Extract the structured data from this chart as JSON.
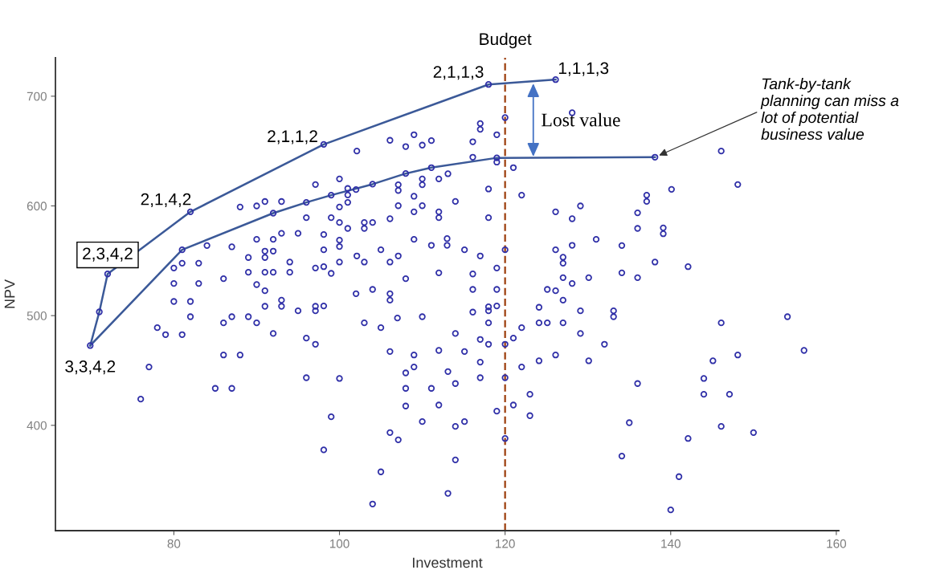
{
  "chart_data": {
    "type": "scatter",
    "xlabel": "Investment",
    "ylabel": "NPV",
    "xlim": [
      65.7,
      160.3
    ],
    "ylim": [
      304,
      735
    ],
    "xticks": [
      80,
      100,
      120,
      140,
      160
    ],
    "yticks": [
      400,
      500,
      600,
      700
    ],
    "series": [
      {
        "marker": "circle",
        "color": "#3030a8",
        "x": [
          72.0,
          82.0,
          81.0,
          92.0,
          96.0,
          97.1,
          88.0,
          90.0,
          91.0,
          93.0,
          96.0,
          84.0,
          87.0,
          90.0,
          92.0,
          93.0,
          95.0,
          91.0,
          92.0,
          89.0,
          91.0,
          94.0,
          81.0,
          83.0,
          80.0,
          89.0,
          91.0,
          92.0,
          94.0,
          97.1,
          80.0,
          83.0,
          86.0,
          90.0,
          91.0,
          118.0,
          126.1,
          98.1,
          120.0,
          128.1,
          117.0,
          117.0,
          119.0,
          116.1,
          106.1,
          109.0,
          108.0,
          110.0,
          111.1,
          102.1,
          116.1,
          119.0,
          119.0,
          121.0,
          111.1,
          113.1,
          112.0,
          110.0,
          110.0,
          108.0,
          100.0,
          104.0,
          107.1,
          107.1,
          102.0,
          101.0,
          101.0,
          101.0,
          99.0,
          118.0,
          122.0,
          109.0,
          114.0,
          100.0,
          107.1,
          110.0,
          109.0,
          112.0,
          112.0,
          118.0,
          126.1,
          128.1,
          129.1,
          99.0,
          100.0,
          101.0,
          103.0,
          103.0,
          104.0,
          106.1,
          98.1,
          100.0,
          100.0,
          109.0,
          113.0,
          113.0,
          111.1,
          98.1,
          105.0,
          115.1,
          120.0,
          126.1,
          128.1,
          102.1,
          107.1,
          117.0,
          127.0,
          127.0,
          100.0,
          103.0,
          106.1,
          98.1,
          99.0,
          119.0,
          112.0,
          116.1,
          108.0,
          127.0,
          128.1,
          102.0,
          104.0,
          106.1,
          116.1,
          119.0,
          125.1,
          126.1,
          138.1,
          146.1,
          148.1,
          140.1,
          137.1,
          137.1,
          136.0,
          136.0,
          139.1,
          139.1,
          131.0,
          134.1,
          138.1,
          142.1,
          130.1,
          134.1,
          136.0,
          69.9,
          71.0,
          80.0,
          82.0,
          82.0,
          78.0,
          79.0,
          81.0,
          77.0,
          76.0,
          86.0,
          87.0,
          89.0,
          90.0,
          91.0,
          93.0,
          93.0,
          95.0,
          97.1,
          97.1,
          92.0,
          96.0,
          97.1,
          86.0,
          88.0,
          96.0,
          85.0,
          87.0,
          106.1,
          98.1,
          100.0,
          99.0,
          98.1,
          103.0,
          105.0,
          107.0,
          110.0,
          106.1,
          109.0,
          109.0,
          108.0,
          108.0,
          108.0,
          113.1,
          112.0,
          114.0,
          115.1,
          111.1,
          114.0,
          112.0,
          110.0,
          106.1,
          107.1,
          114.0,
          115.1,
          114.0,
          105.0,
          113.1,
          104.0,
          116.1,
          118.0,
          118.0,
          119.0,
          118.0,
          117.0,
          118.0,
          117.0,
          117.0,
          119.0,
          120.0,
          120.0,
          120.0,
          121.0,
          122.0,
          122.0,
          121.0,
          123.0,
          123.0,
          124.1,
          124.1,
          125.1,
          124.1,
          126.1,
          127.0,
          127.0,
          129.1,
          129.1,
          133.1,
          133.1,
          132.0,
          130.1,
          136.0,
          135.0,
          134.1,
          146.1,
          154.1,
          156.1,
          148.1,
          145.1,
          144.0,
          144.0,
          147.1,
          146.1,
          150.0,
          142.1,
          141.0,
          140.0
        ],
        "values": [
          538,
          594.6,
          560,
          593.4,
          603.2,
          619.5,
          599,
          600,
          604,
          604,
          589.3,
          563.9,
          562.7,
          569.5,
          569.5,
          575,
          575,
          558.8,
          558.8,
          553,
          553,
          548.8,
          547.8,
          547.8,
          543.4,
          539.5,
          539.5,
          539.5,
          539.5,
          543.4,
          529.3,
          529.3,
          533.7,
          528.3,
          522.7,
          710.7,
          715.1,
          656.1,
          680.5,
          684.9,
          675.1,
          669.8,
          664.9,
          658.5,
          659.8,
          664.9,
          654.1,
          655.4,
          659.5,
          650,
          644.4,
          643.8,
          639.9,
          634.9,
          634.9,
          629.3,
          624.6,
          624.6,
          619.3,
          629.5,
          624.6,
          619.8,
          619.3,
          614.1,
          614.9,
          615.9,
          610,
          603.2,
          609.8,
          615.4,
          609.8,
          608.8,
          604.1,
          599,
          600.2,
          600.2,
          594.6,
          594.6,
          589.3,
          589.3,
          594.6,
          588.3,
          600,
          589.3,
          584.9,
          579.5,
          584.9,
          579.5,
          584.9,
          588.3,
          573.9,
          568.8,
          563,
          569.5,
          570.2,
          564.1,
          564.1,
          560,
          560,
          560,
          560,
          560,
          564.1,
          554.4,
          554.4,
          554.4,
          553.2,
          547.8,
          548.8,
          548.8,
          548.8,
          544.6,
          538.5,
          543.4,
          539,
          538,
          533.7,
          534.6,
          529.3,
          520,
          523.9,
          520,
          523.9,
          523.9,
          523.9,
          522.7,
          644.4,
          650,
          619.5,
          615.1,
          609.8,
          604.1,
          593.7,
          579.5,
          580,
          574.6,
          569.5,
          563.9,
          548.8,
          544.6,
          534.6,
          539,
          534.6,
          472.7,
          503.4,
          512.9,
          512.9,
          499,
          489,
          482.7,
          482.7,
          453.2,
          423.9,
          493.4,
          499,
          499,
          493.4,
          508.5,
          514.1,
          508.5,
          504.4,
          508.5,
          504.4,
          483.7,
          479.5,
          473.9,
          464.1,
          464.1,
          443.4,
          433.7,
          433.7,
          514.1,
          508.8,
          442.7,
          407.8,
          377.6,
          493.4,
          489,
          497.8,
          499,
          467.3,
          464.1,
          453.2,
          447.8,
          433.7,
          417.6,
          449,
          468.3,
          483.7,
          467.3,
          433.7,
          438.1,
          418.5,
          403.4,
          393.4,
          386.8,
          399,
          403.4,
          368.5,
          357.6,
          338,
          328.3,
          503.2,
          508,
          504.4,
          508.8,
          493.4,
          478.3,
          473.9,
          457.6,
          443.4,
          412.9,
          473.9,
          443.4,
          388,
          479.5,
          489,
          453.2,
          418.5,
          428.3,
          408.8,
          507.6,
          493.4,
          493.4,
          458.8,
          464.1,
          514.1,
          493.4,
          504.4,
          483.7,
          504.4,
          499,
          473.9,
          458.8,
          438.1,
          402.4,
          372,
          493.4,
          499,
          468.3,
          464.1,
          458.8,
          442.7,
          428.3,
          428.3,
          399,
          393.4,
          388,
          353.2,
          322.9
        ]
      },
      {
        "type": "line",
        "marker": "none",
        "color": "#3b5998",
        "x": [
          69.9,
          71.0,
          72.0,
          82.0,
          98.1,
          118.0,
          126.1
        ],
        "values": [
          472.7,
          503.4,
          538,
          594.6,
          656.1,
          710.7,
          715.1
        ]
      },
      {
        "type": "line",
        "marker": "none",
        "color": "#3b5998",
        "x": [
          69.9,
          81.0,
          92.0,
          96.0,
          99.0,
          104.0,
          108.0,
          111.1,
          119.0,
          138.1
        ],
        "values": [
          472.7,
          560,
          593.4,
          603.2,
          609.8,
          619.8,
          629.5,
          634.9,
          643.8,
          644.4
        ]
      }
    ],
    "ref_lines": [
      {
        "axis": "x",
        "value": 120,
        "label": "Budget",
        "color": "#9c3d0b",
        "line_style": "dashed"
      }
    ],
    "annotations": [
      {
        "text": "3,3,4,2",
        "x": 69.9,
        "y": 472.7
      },
      {
        "text": "2,3,4,2",
        "x": 72.0,
        "y": 538
      },
      {
        "text": "2,1,4,2",
        "x": 82.0,
        "y": 594.6
      },
      {
        "text": "2,1,1,2",
        "x": 98.1,
        "y": 656.1
      },
      {
        "text": "2,1,1,3",
        "x": 118.0,
        "y": 710.7
      },
      {
        "text": "1,1,1,3",
        "x": 126.1,
        "y": 715.1
      },
      "Lost value",
      {
        "text": "Tank-by-tank\nplanning can miss a\nlot of potential\nbusiness value",
        "x": 138.1,
        "y": 644.4
      }
    ]
  }
}
